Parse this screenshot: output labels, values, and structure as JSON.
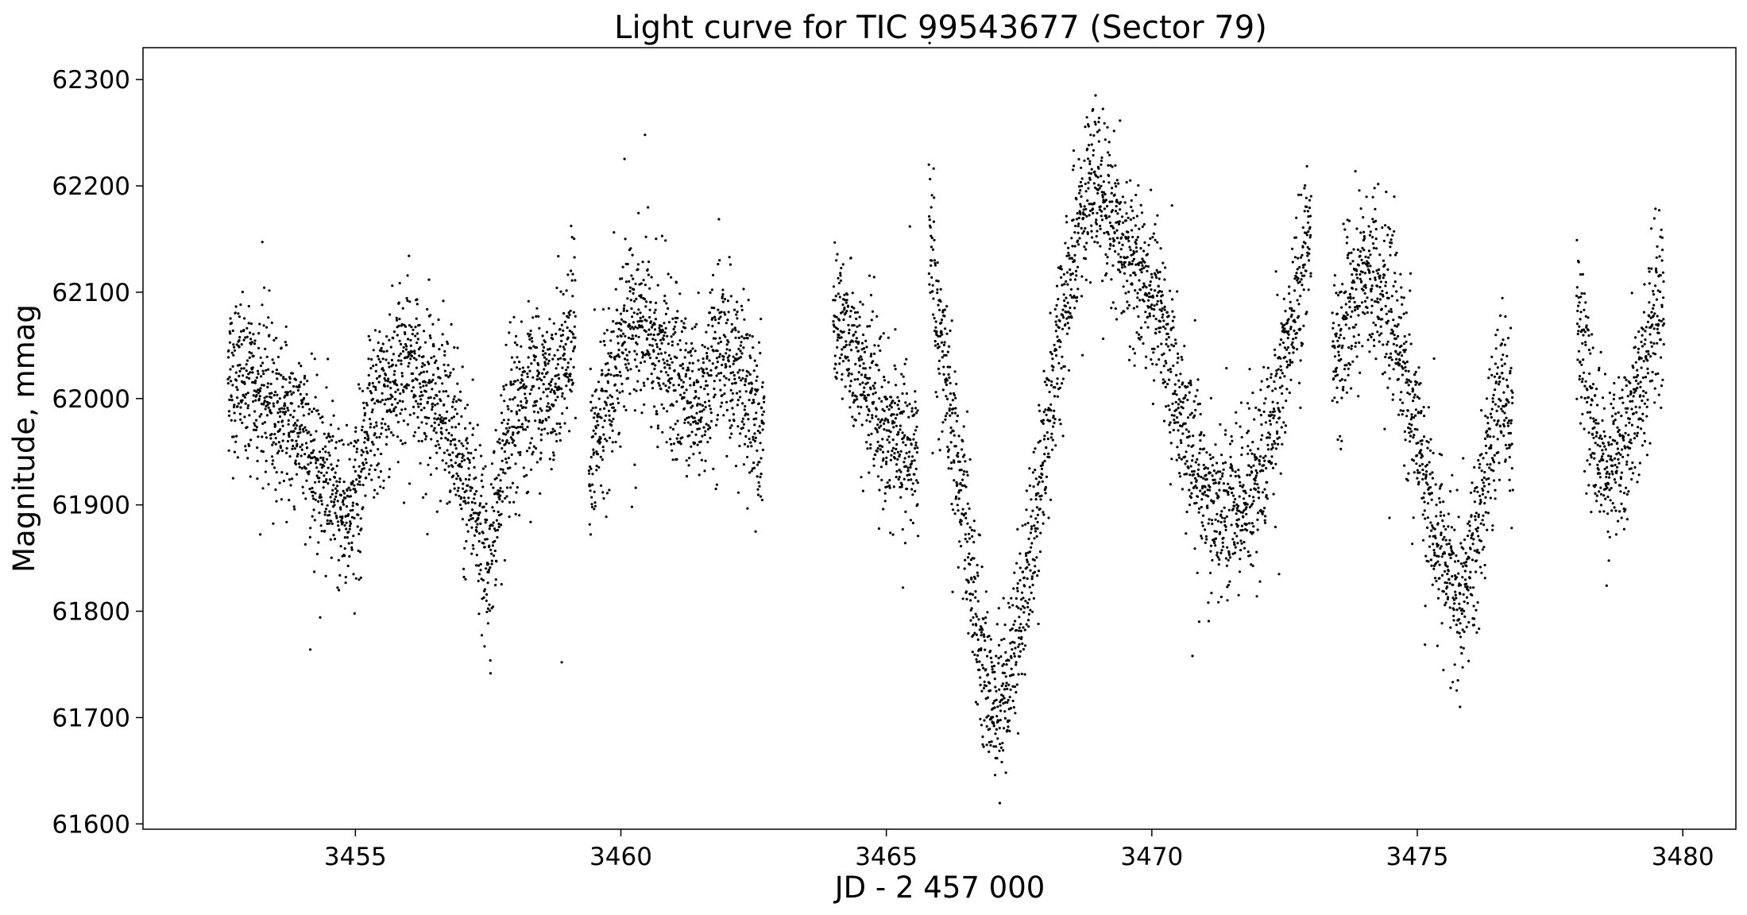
{
  "chart_data": {
    "type": "scatter",
    "title": "Light curve for TIC 99543677 (Sector 79)",
    "xlabel": "JD - 2 457 000",
    "ylabel": "Magnitude, mmag",
    "xlim": [
      3451.0,
      3481.0
    ],
    "ylim": [
      61595,
      62330
    ],
    "xticks": [
      3455,
      3460,
      3465,
      3470,
      3475,
      3480
    ],
    "xtick_labels": [
      "3455",
      "3460",
      "3465",
      "3470",
      "3475",
      "3480"
    ],
    "yticks": [
      61600,
      61700,
      61800,
      61900,
      62000,
      62100,
      62200,
      62300
    ],
    "ytick_labels": [
      "61600",
      "61700",
      "61800",
      "61900",
      "62000",
      "62100",
      "62200",
      "62300"
    ],
    "grid": false,
    "legend": false,
    "marker_color": "#000000",
    "series": [
      {
        "points_trend": [
          [
            3452.6,
            62030
          ],
          [
            3453.0,
            62015
          ],
          [
            3453.5,
            61990
          ],
          [
            3454.0,
            61970
          ],
          [
            3454.5,
            61915
          ],
          [
            3454.8,
            61890
          ],
          [
            3455.0,
            61910
          ],
          [
            3455.3,
            61970
          ],
          [
            3455.7,
            62020
          ],
          [
            3456.0,
            62035
          ],
          [
            3456.3,
            62020
          ],
          [
            3456.6,
            61995
          ],
          [
            3457.0,
            61940
          ],
          [
            3457.3,
            61890
          ],
          [
            3457.5,
            61840
          ],
          [
            3457.7,
            61910
          ],
          [
            3458.0,
            61980
          ],
          [
            3458.3,
            62010
          ],
          [
            3458.7,
            62010
          ],
          [
            3459.0,
            62050
          ],
          [
            3459.15,
            62070
          ],
          [
            3459.4,
            61930
          ],
          [
            3459.7,
            61990
          ],
          [
            3460.0,
            62050
          ],
          [
            3460.3,
            62070
          ],
          [
            3460.7,
            62040
          ],
          [
            3461.0,
            62020
          ],
          [
            3461.5,
            62000
          ],
          [
            3461.9,
            62040
          ],
          [
            3462.2,
            62030
          ],
          [
            3462.5,
            61990
          ],
          [
            3462.7,
            61980
          ],
          [
            3464.0,
            62090
          ],
          [
            3464.3,
            62050
          ],
          [
            3464.7,
            62000
          ],
          [
            3465.0,
            61970
          ],
          [
            3465.3,
            61955
          ],
          [
            3465.6,
            61940
          ],
          [
            3465.8,
            62180
          ],
          [
            3466.0,
            62060
          ],
          [
            3466.2,
            61990
          ],
          [
            3466.5,
            61870
          ],
          [
            3466.8,
            61760
          ],
          [
            3467.0,
            61710
          ],
          [
            3467.2,
            61720
          ],
          [
            3467.5,
            61790
          ],
          [
            3467.8,
            61880
          ],
          [
            3468.0,
            61960
          ],
          [
            3468.2,
            62030
          ],
          [
            3468.5,
            62120
          ],
          [
            3468.8,
            62190
          ],
          [
            3469.0,
            62200
          ],
          [
            3469.3,
            62170
          ],
          [
            3469.6,
            62130
          ],
          [
            3469.9,
            62110
          ],
          [
            3470.2,
            62080
          ],
          [
            3470.5,
            61990
          ],
          [
            3470.8,
            61940
          ],
          [
            3471.1,
            61900
          ],
          [
            3471.5,
            61890
          ],
          [
            3471.9,
            61920
          ],
          [
            3472.2,
            61960
          ],
          [
            3472.5,
            62040
          ],
          [
            3472.8,
            62110
          ],
          [
            3473.0,
            62150
          ],
          [
            3473.4,
            62040
          ],
          [
            3473.7,
            62070
          ],
          [
            3474.0,
            62110
          ],
          [
            3474.3,
            62120
          ],
          [
            3474.7,
            62040
          ],
          [
            3475.0,
            61960
          ],
          [
            3475.3,
            61880
          ],
          [
            3475.6,
            61840
          ],
          [
            3475.8,
            61800
          ],
          [
            3476.0,
            61840
          ],
          [
            3476.3,
            61920
          ],
          [
            3476.6,
            62030
          ],
          [
            3476.8,
            61950
          ],
          [
            3478.0,
            62090
          ],
          [
            3478.3,
            61980
          ],
          [
            3478.6,
            61930
          ],
          [
            3478.9,
            61960
          ],
          [
            3479.2,
            62010
          ],
          [
            3479.5,
            62070
          ],
          [
            3479.65,
            62090
          ]
        ],
        "gaps": [
          [
            3459.2,
            3459.35
          ],
          [
            3462.75,
            3463.95
          ],
          [
            3465.65,
            3465.75
          ],
          [
            3473.1,
            3473.3
          ],
          [
            3476.85,
            3477.95
          ]
        ],
        "scatter_mmag": 38
      }
    ]
  }
}
